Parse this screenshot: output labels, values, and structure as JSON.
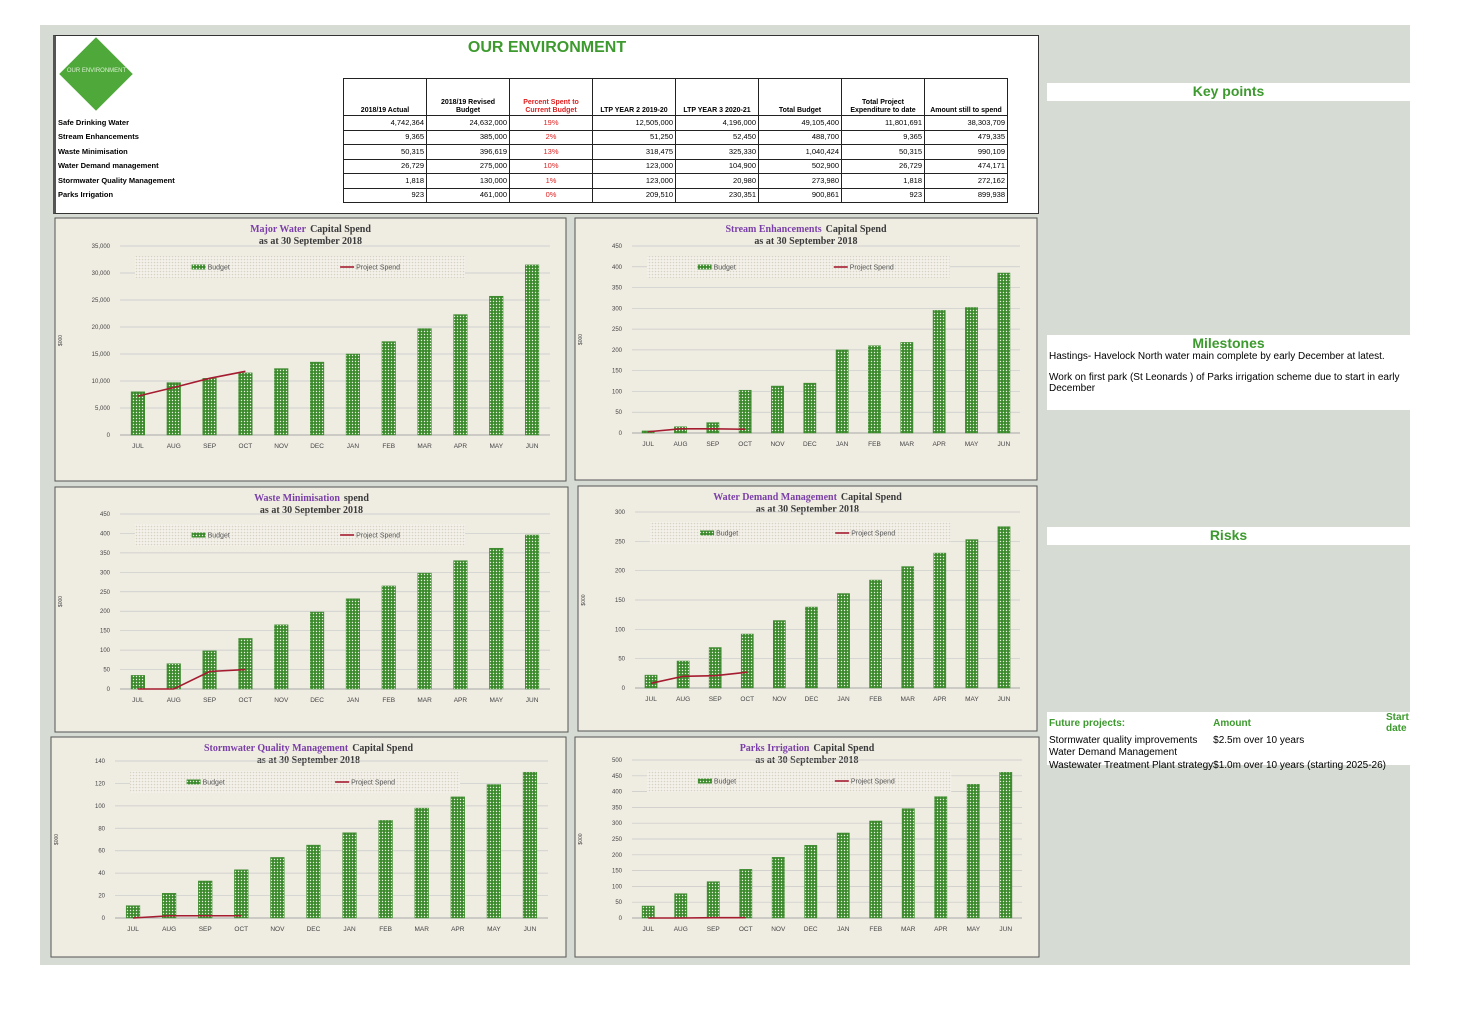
{
  "header": {
    "title": "OUR ENVIRONMENT",
    "logo": "OUR ENVIRONMENT"
  },
  "table": {
    "columns": [
      "2018/19 Actual",
      "2018/19 Revised Budget",
      "Percent Spent to Current Budget",
      "LTP YEAR 2 2019-20",
      "LTP YEAR 3 2020-21",
      "Total Budget",
      "Total Project Expenditure to date",
      "Amount still to spend"
    ],
    "rows": [
      [
        "Safe Drinking Water",
        "4,742,364",
        "24,632,000",
        "19%",
        "12,505,000",
        "4,196,000",
        "49,105,400",
        "11,801,691",
        "38,303,709"
      ],
      [
        "Stream Enhancements",
        "9,365",
        "385,000",
        "2%",
        "51,250",
        "52,450",
        "488,700",
        "9,365",
        "479,335"
      ],
      [
        "Waste Minimisation",
        "50,315",
        "396,619",
        "13%",
        "318,475",
        "325,330",
        "1,040,424",
        "50,315",
        "990,109"
      ],
      [
        "Water Demand management",
        "26,729",
        "275,000",
        "10%",
        "123,000",
        "104,900",
        "502,900",
        "26,729",
        "474,171"
      ],
      [
        "Stormwater Quality Management",
        "1,818",
        "130,000",
        "1%",
        "123,000",
        "20,980",
        "273,980",
        "1,818",
        "272,162"
      ],
      [
        "Parks Irrigation",
        "923",
        "461,000",
        "0%",
        "209,510",
        "230,351",
        "900,861",
        "923",
        "899,938"
      ]
    ]
  },
  "chart_data": [
    {
      "type": "bar",
      "title_highlight": "Major Water",
      "title": "Capital Spend",
      "subtitle": "as at 30 September 2018",
      "ylabel": "$000",
      "categories": [
        "JUL",
        "AUG",
        "SEP",
        "OCT",
        "NOV",
        "DEC",
        "JAN",
        "FEB",
        "MAR",
        "APR",
        "MAY",
        "JUN"
      ],
      "series": [
        {
          "name": "Budget",
          "color": "#3b8a2c",
          "values": [
            8000,
            9700,
            10500,
            11500,
            12300,
            13500,
            15000,
            17300,
            19700,
            22300,
            25700,
            31500
          ]
        },
        {
          "name": "Project Spend",
          "type": "line",
          "color": "#a51c30",
          "values": [
            7200,
            8800,
            10500,
            11800,
            null,
            null,
            null,
            null,
            null,
            null,
            null,
            null
          ]
        }
      ],
      "ylim": [
        0,
        35000
      ],
      "yticks": [
        0,
        {
          "value": 5000,
          "label": "5,000"
        },
        {
          "value": 10000,
          "label": "10,000"
        },
        {
          "value": 15000,
          "label": "15,000"
        },
        {
          "value": 20000,
          "label": "20,000"
        },
        {
          "value": 25000,
          "label": "25,000"
        },
        {
          "value": 30000,
          "label": "30,000"
        },
        {
          "value": 35000,
          "label": "35,000"
        }
      ],
      "grid": true
    },
    {
      "type": "bar",
      "title_highlight": "Stream Enhancements",
      "title": "Capital Spend",
      "subtitle": "as at 30 September 2018",
      "ylabel": "$000",
      "categories": [
        "JUL",
        "AUG",
        "SEP",
        "OCT",
        "NOV",
        "DEC",
        "JAN",
        "FEB",
        "MAR",
        "APR",
        "MAY",
        "JUN"
      ],
      "series": [
        {
          "name": "Budget",
          "color": "#3b8a2c",
          "values": [
            5,
            15,
            25,
            103,
            113,
            120,
            200,
            210,
            218,
            295,
            302,
            385
          ]
        },
        {
          "name": "Project Spend",
          "type": "line",
          "color": "#a51c30",
          "values": [
            3,
            10,
            10,
            9,
            null,
            null,
            null,
            null,
            null,
            null,
            null,
            null
          ]
        }
      ],
      "ylim": [
        0,
        450
      ],
      "yticks": [
        0,
        50,
        100,
        150,
        200,
        250,
        300,
        350,
        400,
        450
      ],
      "grid": true
    },
    {
      "type": "bar",
      "title_highlight": "Waste Minimisation",
      "title": "spend",
      "subtitle": "as at 30 September 2018",
      "ylabel": "$000",
      "categories": [
        "JUL",
        "AUG",
        "SEP",
        "OCT",
        "NOV",
        "DEC",
        "JAN",
        "FEB",
        "MAR",
        "APR",
        "MAY",
        "JUN"
      ],
      "series": [
        {
          "name": "Budget",
          "color": "#3b8a2c",
          "values": [
            35,
            65,
            98,
            130,
            165,
            198,
            232,
            265,
            298,
            330,
            362,
            396
          ]
        },
        {
          "name": "Project Spend",
          "type": "line",
          "color": "#a51c30",
          "values": [
            0,
            0,
            45,
            50,
            null,
            null,
            null,
            null,
            null,
            null,
            null,
            null
          ]
        }
      ],
      "ylim": [
        0,
        450
      ],
      "yticks": [
        0,
        50,
        100,
        150,
        200,
        250,
        300,
        350,
        400,
        450
      ],
      "grid": true
    },
    {
      "type": "bar",
      "title_highlight": "Water Demand Management",
      "title": "Capital Spend",
      "subtitle": "as at 30 September 2018",
      "ylabel": "$000",
      "categories": [
        "JUL",
        "AUG",
        "SEP",
        "OCT",
        "NOV",
        "DEC",
        "JAN",
        "FEB",
        "MAR",
        "APR",
        "MAY",
        "JUN"
      ],
      "series": [
        {
          "name": "Budget",
          "color": "#3b8a2c",
          "values": [
            22,
            46,
            69,
            92,
            115,
            138,
            161,
            184,
            207,
            230,
            253,
            275
          ]
        },
        {
          "name": "Project Spend",
          "type": "line",
          "color": "#a51c30",
          "values": [
            8,
            20,
            21,
            27,
            null,
            null,
            null,
            null,
            null,
            null,
            null,
            null
          ]
        }
      ],
      "ylim": [
        0,
        300
      ],
      "yticks": [
        0,
        50,
        100,
        150,
        200,
        250,
        300
      ],
      "grid": true
    },
    {
      "type": "bar",
      "title_highlight": "Stormwater Quality Management",
      "title": "Capital Spend",
      "subtitle": "as at 30 September 2018",
      "ylabel": "$000",
      "categories": [
        "JUL",
        "AUG",
        "SEP",
        "OCT",
        "NOV",
        "DEC",
        "JAN",
        "FEB",
        "MAR",
        "APR",
        "MAY",
        "JUN"
      ],
      "series": [
        {
          "name": "Budget",
          "color": "#3b8a2c",
          "values": [
            11,
            22,
            33,
            43,
            54,
            65,
            76,
            87,
            98,
            108,
            119,
            130
          ]
        },
        {
          "name": "Project Spend",
          "type": "line",
          "color": "#a51c30",
          "values": [
            0,
            2,
            2,
            2,
            null,
            null,
            null,
            null,
            null,
            null,
            null,
            null
          ]
        }
      ],
      "ylim": [
        0,
        140
      ],
      "yticks": [
        0,
        20,
        40,
        60,
        80,
        100,
        120,
        140
      ],
      "grid": true
    },
    {
      "type": "bar",
      "title_highlight": "Parks Irrigation",
      "title": "Capital Spend",
      "subtitle": "as at 30 September 2018",
      "ylabel": "$000",
      "categories": [
        "JUL",
        "AUG",
        "SEP",
        "OCT",
        "NOV",
        "DEC",
        "JAN",
        "FEB",
        "MAR",
        "APR",
        "MAY",
        "JUN"
      ],
      "series": [
        {
          "name": "Budget",
          "color": "#3b8a2c",
          "values": [
            38,
            77,
            115,
            154,
            192,
            230,
            269,
            307,
            346,
            384,
            423,
            461
          ]
        },
        {
          "name": "Project Spend",
          "type": "line",
          "color": "#a51c30",
          "values": [
            0,
            0,
            1,
            1,
            null,
            null,
            null,
            null,
            null,
            null,
            null,
            null
          ]
        }
      ],
      "ylim": [
        0,
        500
      ],
      "yticks": [
        0,
        50,
        100,
        150,
        200,
        250,
        300,
        350,
        400,
        450,
        500
      ],
      "grid": true
    }
  ],
  "key_points": {
    "title": "Key points"
  },
  "milestones": {
    "title": "Milestones",
    "items": [
      "Hastings- Havelock North water main complete by early December at latest.",
      "Work on first park (St Leonards ) of Parks irrigation scheme  due to start in early December"
    ]
  },
  "risks": {
    "title": "Risks"
  },
  "future_projects": {
    "columns": [
      "Future projects:",
      "Amount",
      "Start date"
    ],
    "rows": [
      [
        "Stormwater quality improvements",
        "$2.5m over 10 years"
      ],
      [
        "Water Demand Management"
      ],
      [
        "Wastewater Treatment Plant strategy",
        "$1.0m over 10 years (starting 2025-26)"
      ]
    ]
  }
}
